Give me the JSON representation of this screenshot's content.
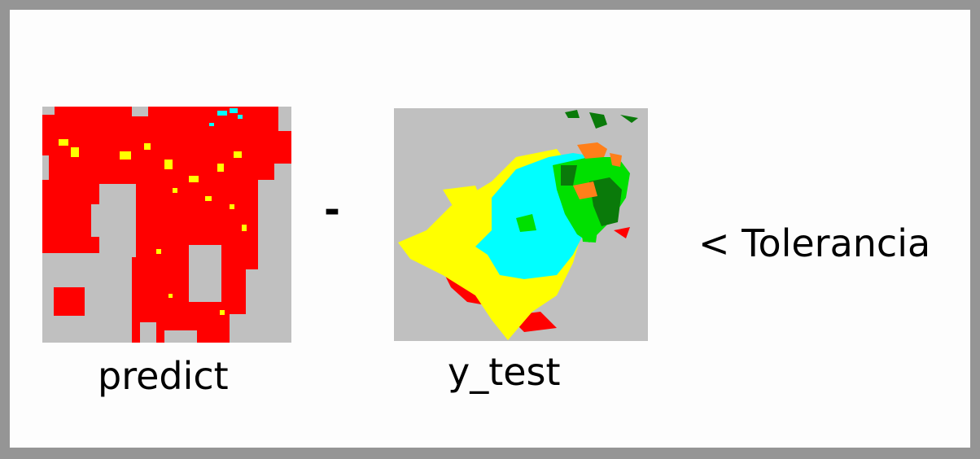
{
  "labels": {
    "left": "predict",
    "right": "y_test",
    "operator": "-",
    "comparison": "< Tolerancia"
  },
  "colors": {
    "frame": "#959595",
    "background": "#fdfdfd",
    "no_data": "#c0c0c0",
    "class_red": "#ff0000",
    "class_yellow": "#ffff00",
    "class_cyan": "#00ffff",
    "class_green": "#00e000",
    "class_dark_green": "#0a7a0a",
    "class_orange": "#ff7f1a"
  }
}
